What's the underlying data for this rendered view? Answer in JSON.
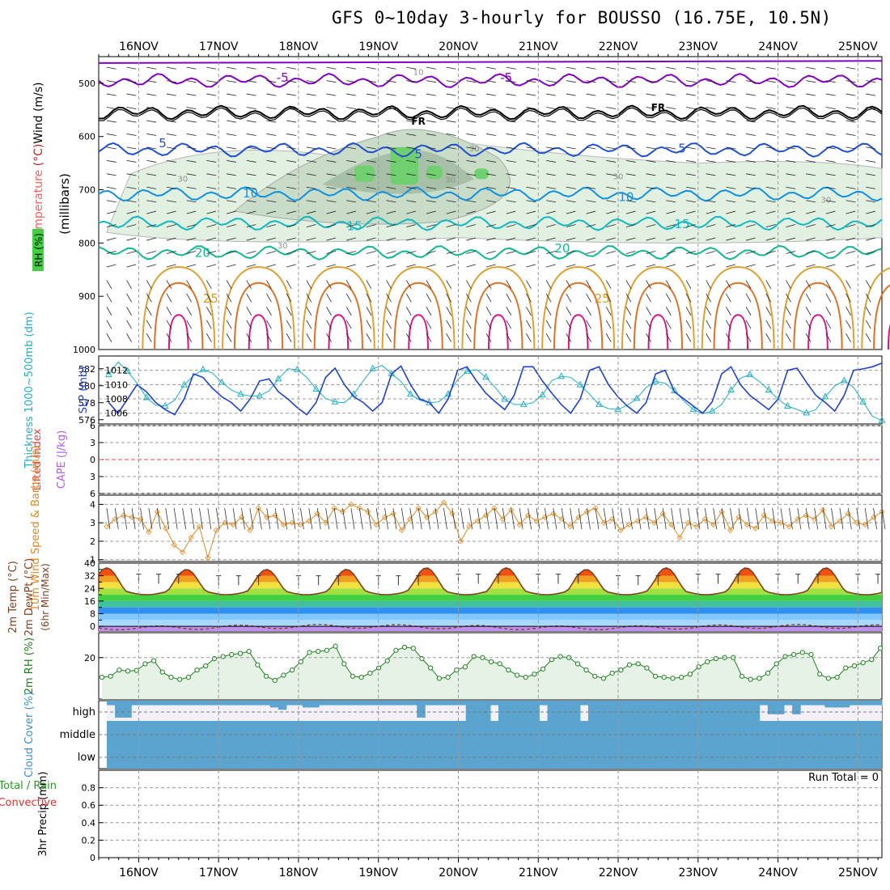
{
  "title": "GFS 0~10day 3-hourly for BOUSSO (16.75E, 10.5N)",
  "dates": [
    "16NOV",
    "17NOV",
    "18NOV",
    "19NOV",
    "20NOV",
    "21NOV",
    "22NOV",
    "23NOV",
    "24NOV",
    "25NOV"
  ],
  "chart_data": [
    {
      "type": "heatmap",
      "panel": "upper-air",
      "ylabel": "(millibars)",
      "series_labels": {
        "wind": "Wind (m/s)",
        "temp": "Temperature (°C)",
        "rh": "RH (%)"
      },
      "y_ticks": [
        500,
        600,
        700,
        800,
        900,
        1000
      ],
      "ylim": [
        1000,
        450
      ],
      "isotherm_labels": [
        "-5",
        "FR",
        "5",
        "10",
        "15",
        "20",
        "25"
      ],
      "rh_labels": [
        "10",
        "30",
        "30",
        "30",
        "30",
        "30",
        "30"
      ],
      "isotherms": [
        {
          "label": "-5",
          "color": "#8000c0",
          "p": 495
        },
        {
          "label": "FR",
          "color": "#000000",
          "p": 555
        },
        {
          "label": "5",
          "color": "#2050d0",
          "p": 625
        },
        {
          "label": "10",
          "color": "#1090e0",
          "p": 708
        },
        {
          "label": "15",
          "color": "#10b8c0",
          "p": 763
        },
        {
          "label": "20",
          "color": "#10b890",
          "p": 818
        }
      ]
    },
    {
      "type": "line",
      "panel": "thickness-slp",
      "series": [
        {
          "name": "Thickness 1000~500mb (dm)",
          "axis": "left",
          "color": "#20b0c0",
          "marker": "triangle",
          "values": [
            581.3,
            582.8,
            581.7,
            580.3,
            578.6,
            577.7,
            577.6,
            578.3,
            580.1,
            581.2,
            581.9,
            581.5,
            580.4,
            579.5,
            579.0,
            578.8,
            578.8,
            579.4,
            580.8,
            582.0,
            581.9,
            581.0,
            579.6,
            578.5,
            578.1,
            578.0,
            579.0,
            580.6,
            582.0,
            582.4,
            581.4,
            580.5,
            579.0,
            578.3,
            578.0,
            578.1,
            579.0,
            580.7,
            581.7,
            581.9,
            581.0,
            579.8,
            578.4,
            577.8,
            577.8,
            578.0,
            578.9,
            580.6,
            581.1,
            581.0,
            580.1,
            579.0,
            577.8,
            577.3,
            577.2,
            577.7,
            578.5,
            579.8,
            580.5,
            580.3,
            579.4,
            578.2,
            577.2,
            576.7,
            577.0,
            577.8,
            579.5,
            580.9,
            581.3,
            580.5,
            579.5,
            578.4,
            577.6,
            577.2,
            576.8,
            577.2,
            578.7,
            580.0,
            580.6,
            579.8,
            578.1,
            576.4,
            575.9
          ]
        },
        {
          "name": "SLP (mb)",
          "axis": "right",
          "color": "#2040d0",
          "values": [
            1007.5,
            1006.0,
            1008.0,
            1010.0,
            1009.0,
            1007.5,
            1006.5,
            1005.8,
            1008.0,
            1011.5,
            1011.0,
            1009.5,
            1008.3,
            1007.5,
            1006.3,
            1008.0,
            1010.5,
            1010.8,
            1009.0,
            1008.0,
            1006.8,
            1005.8,
            1007.5,
            1011.0,
            1012.3,
            1010.0,
            1008.3,
            1007.5,
            1006.3,
            1007.5,
            1011.5,
            1012.6,
            1010.0,
            1008.0,
            1007.5,
            1006.0,
            1008.0,
            1012.0,
            1012.5,
            1010.5,
            1008.8,
            1007.6,
            1006.5,
            1008.5,
            1012.5,
            1012.5,
            1010.5,
            1008.8,
            1007.2,
            1006.0,
            1008.0,
            1012.0,
            1012.5,
            1010.0,
            1008.3,
            1007.0,
            1006.0,
            1007.5,
            1011.5,
            1012.0,
            1009.0,
            1008.0,
            1007.0,
            1006.0,
            1007.6,
            1011.5,
            1012.5,
            1010.0,
            1008.5,
            1007.5,
            1006.5,
            1008.0,
            1012.0,
            1012.3,
            1010.3,
            1008.5,
            1007.5,
            1006.3,
            1008.5,
            1012.0,
            1012.2,
            1012.5,
            1013.0
          ]
        }
      ],
      "y_left_ticks": [
        576,
        578,
        580,
        582
      ],
      "y_left_lim": [
        575.5,
        583.5
      ],
      "y_right_ticks": [
        1006,
        1008,
        1010,
        1012
      ],
      "y_right_lim": [
        1004.5,
        1014.0
      ]
    },
    {
      "type": "line",
      "panel": "cape-li",
      "series": [
        {
          "name": "Lifted Index"
        },
        {
          "name": "CAPE (J/kg)"
        }
      ],
      "y_ticks": [
        -6,
        -3,
        0,
        3,
        6
      ],
      "y_tick_labels": [
        "6",
        "3",
        "0",
        "3",
        "6"
      ],
      "ylim": [
        -6,
        6
      ],
      "zero_line": 0
    },
    {
      "type": "line",
      "panel": "wind10m",
      "series": [
        {
          "name": "10m Wind Speed & Barbs (m/s)",
          "color": "#e08a20",
          "values": [
            2.8,
            3.2,
            3.4,
            3.3,
            3.2,
            2.5,
            3.6,
            2.7,
            1.8,
            1.4,
            2.2,
            2.8,
            1.1,
            2.6,
            3.0,
            2.9,
            3.3,
            2.6,
            3.8,
            3.3,
            3.4,
            2.9,
            3.0,
            2.9,
            3.1,
            3.5,
            3.0,
            3.8,
            3.6,
            4.0,
            3.8,
            3.6,
            2.9,
            3.3,
            3.5,
            2.6,
            3.2,
            3.8,
            3.3,
            3.6,
            4.1,
            3.5,
            2.0,
            2.8,
            3.1,
            3.4,
            3.8,
            3.2,
            3.7,
            2.9,
            3.4,
            3.1,
            3.3,
            3.5,
            3.2,
            2.8,
            3.3,
            3.6,
            3.8,
            3.0,
            3.2,
            2.6,
            2.9,
            3.1,
            3.3,
            3.0,
            3.5,
            2.9,
            2.2,
            3.0,
            2.8,
            3.2,
            2.9,
            3.6,
            2.6,
            3.3,
            2.9,
            2.7,
            3.4,
            3.1,
            3.0,
            2.8,
            3.2,
            3.4,
            3.2,
            3.7,
            2.8,
            3.1,
            3.5,
            3.0,
            2.9,
            3.3,
            3.6
          ]
        }
      ],
      "y_ticks": [
        1,
        2,
        3,
        4
      ],
      "ylim": [
        0.9,
        4.5
      ]
    },
    {
      "type": "line",
      "panel": "temp2m",
      "series": [
        {
          "name": "2m Temp (°C)",
          "color": "#804020"
        },
        {
          "name": "2m DewPt (°C)",
          "color": "#804020",
          "dash": "dashed"
        },
        {
          "name": "(6hr Min/Max)"
        }
      ],
      "y_ticks": [
        0,
        8,
        16,
        24,
        32,
        40
      ],
      "y_minor_ticks": [
        4,
        12,
        20,
        28,
        36
      ],
      "ylim": [
        -3,
        40
      ],
      "daily_max": [
        35,
        34,
        34,
        34,
        35,
        35,
        34,
        35,
        35,
        35
      ],
      "daily_min": [
        22,
        21,
        22,
        21,
        22,
        22,
        21,
        22,
        21,
        21
      ]
    },
    {
      "type": "area",
      "panel": "rh2m",
      "series": [
        {
          "name": "2m RH (%)",
          "color": "#208020",
          "values": [
            10.5,
            11.0,
            14.0,
            13.5,
            13.8,
            17.0,
            18.5,
            13.0,
            10.5,
            9.5,
            10.5,
            14.0,
            16.0,
            19.5,
            20.5,
            21.5,
            22.0,
            23.0,
            16.5,
            11.0,
            9.0,
            11.5,
            14.0,
            18.0,
            22.5,
            23.0,
            23.5,
            25.5,
            17.0,
            11.0,
            10.5,
            12.5,
            15.0,
            18.5,
            23.5,
            25.0,
            24.5,
            19.5,
            15.0,
            10.0,
            10.5,
            14.0,
            15.5,
            20.5,
            20.0,
            18.0,
            17.0,
            14.0,
            11.5,
            10.5,
            12.0,
            14.5,
            19.0,
            20.5,
            20.0,
            17.0,
            14.0,
            11.0,
            10.0,
            12.5,
            14.0,
            16.5,
            17.0,
            15.0,
            11.0,
            10.5,
            10.0,
            10.5,
            12.0,
            15.5,
            18.0,
            19.5,
            20.0,
            20.0,
            11.0,
            9.5,
            10.0,
            12.5,
            17.0,
            20.5,
            21.5,
            22.5,
            21.5,
            12.0,
            10.0,
            10.5,
            15.0,
            16.0,
            17.5,
            19.0,
            24.5
          ]
        }
      ],
      "y_ticks": [
        20
      ],
      "ylim": [
        0,
        32
      ]
    },
    {
      "type": "bar",
      "panel": "cloud",
      "series_label": "Cloud Cover (%)",
      "levels": [
        "high",
        "middle",
        "low"
      ],
      "high_values": [
        20,
        75,
        75,
        20,
        20,
        20,
        20,
        20,
        20,
        20,
        20,
        20,
        20,
        20,
        20,
        20,
        20,
        20,
        20,
        20,
        30,
        40,
        20,
        20,
        30,
        30,
        20,
        20,
        20,
        20,
        20,
        20,
        20,
        20,
        20,
        20,
        20,
        20,
        75,
        20,
        20,
        20,
        20,
        20,
        100,
        100,
        100,
        20,
        100,
        100,
        100,
        100,
        100,
        20,
        100,
        100,
        100,
        100,
        20,
        100,
        100,
        100,
        100,
        100,
        100,
        100,
        100,
        100,
        100,
        100,
        100,
        100,
        100,
        100,
        100,
        100,
        100,
        100,
        100,
        100,
        20,
        60,
        60,
        20,
        60,
        20,
        20,
        20,
        30,
        30,
        30,
        20,
        20,
        20,
        20
      ],
      "middle_values": [
        100
      ],
      "low_values": [
        100
      ]
    },
    {
      "type": "bar",
      "panel": "precip",
      "ylabel": "3hr Precip (mm)",
      "series": [
        {
          "name": "Total / Rain"
        },
        {
          "name": "Convective"
        }
      ],
      "y_ticks": [
        0,
        0.2,
        0.4,
        0.6,
        0.8
      ],
      "ylim": [
        0,
        1.0
      ],
      "run_total_label": "Run Total = 0"
    }
  ]
}
